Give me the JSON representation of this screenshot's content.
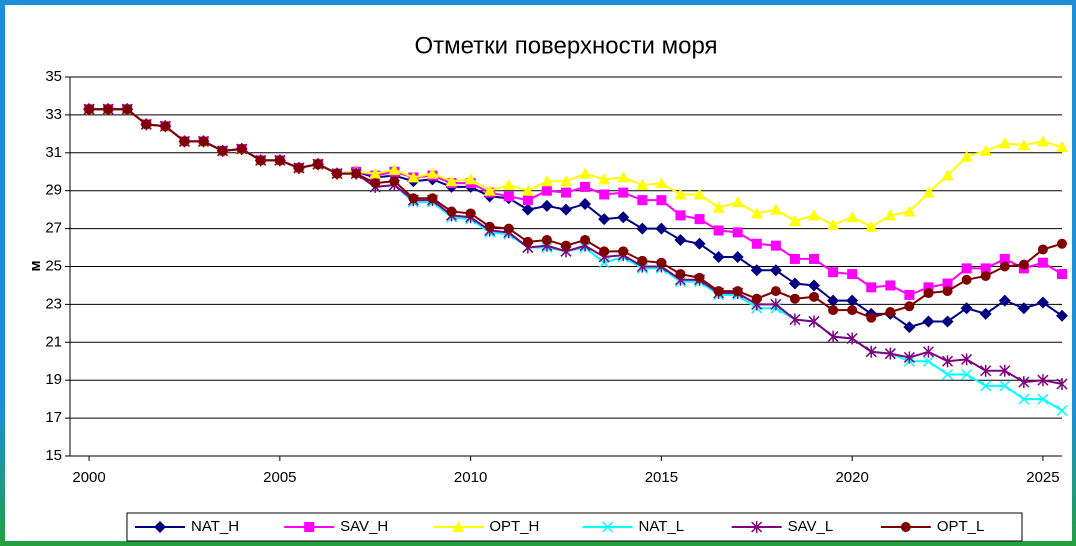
{
  "chart_data": {
    "type": "line",
    "title": "Отметки поверхности моря",
    "y_label": "м",
    "x": [
      2000,
      2000.5,
      2001,
      2001.5,
      2002,
      2002.5,
      2003,
      2003.5,
      2004,
      2004.5,
      2005,
      2005.5,
      2006,
      2006.5,
      2007,
      2007.5,
      2008,
      2008.5,
      2009,
      2009.5,
      2010,
      2010.5,
      2011,
      2011.5,
      2012,
      2012.5,
      2013,
      2013.5,
      2014,
      2014.5,
      2015,
      2015.5,
      2016,
      2016.5,
      2017,
      2017.5,
      2018,
      2018.5,
      2019,
      2019.5,
      2020,
      2020.5,
      2021,
      2021.5,
      2022,
      2022.5,
      2023,
      2023.5,
      2024,
      2024.5,
      2025,
      2025.5
    ],
    "xlim": [
      1999.5,
      2025.5
    ],
    "xticks": [
      2000,
      2005,
      2010,
      2015,
      2020,
      2025
    ],
    "ylim": [
      15,
      35
    ],
    "yticks": [
      15,
      17,
      19,
      21,
      23,
      25,
      27,
      29,
      31,
      33,
      35
    ],
    "grid": true,
    "legend": "bottom",
    "series": [
      {
        "name": "NAT_H",
        "color": "#000080",
        "marker": "diamond",
        "values": [
          33.3,
          33.3,
          33.3,
          32.5,
          32.4,
          31.6,
          31.6,
          31.1,
          31.2,
          30.6,
          30.6,
          30.2,
          30.4,
          29.9,
          30.0,
          29.7,
          29.8,
          29.5,
          29.6,
          29.2,
          29.2,
          28.7,
          28.6,
          28.0,
          28.2,
          28.0,
          28.3,
          27.5,
          27.6,
          27.0,
          27.0,
          26.4,
          26.2,
          25.5,
          25.5,
          24.8,
          24.8,
          24.1,
          24.0,
          23.2,
          23.2,
          22.5,
          22.5,
          21.8,
          22.1,
          22.1,
          22.8,
          22.5,
          23.2,
          22.8,
          23.1,
          22.4
        ]
      },
      {
        "name": "SAV_H",
        "color": "#ff00ff",
        "marker": "square",
        "values": [
          33.3,
          33.3,
          33.3,
          32.5,
          32.4,
          31.6,
          31.6,
          31.1,
          31.2,
          30.6,
          30.6,
          30.2,
          30.4,
          29.9,
          30.0,
          29.8,
          30.0,
          29.7,
          29.8,
          29.4,
          29.4,
          28.9,
          28.7,
          28.5,
          29.0,
          28.9,
          29.2,
          28.8,
          28.9,
          28.5,
          28.5,
          27.7,
          27.5,
          26.9,
          26.8,
          26.2,
          26.1,
          25.4,
          25.4,
          24.7,
          24.6,
          23.9,
          24.0,
          23.5,
          23.9,
          24.1,
          24.9,
          24.9,
          25.4,
          24.9,
          25.2,
          24.6
        ]
      },
      {
        "name": "OPT_H",
        "color": "#ffff00",
        "marker": "triangle",
        "values": [
          33.3,
          33.3,
          33.3,
          32.5,
          32.4,
          31.6,
          31.6,
          31.1,
          31.2,
          30.6,
          30.6,
          30.2,
          30.4,
          29.9,
          30.0,
          29.9,
          30.1,
          29.7,
          29.9,
          29.5,
          29.6,
          29.0,
          29.3,
          29.0,
          29.5,
          29.5,
          29.9,
          29.6,
          29.7,
          29.3,
          29.4,
          28.8,
          28.8,
          28.1,
          28.4,
          27.8,
          28.0,
          27.4,
          27.7,
          27.2,
          27.6,
          27.1,
          27.7,
          27.9,
          28.9,
          29.8,
          30.8,
          31.1,
          31.5,
          31.4,
          31.6,
          31.3
        ]
      },
      {
        "name": "NAT_L",
        "color": "#00ffff",
        "marker": "x",
        "values": [
          33.3,
          33.3,
          33.3,
          32.5,
          32.4,
          31.6,
          31.6,
          31.1,
          31.2,
          30.6,
          30.6,
          30.2,
          30.4,
          29.9,
          29.9,
          29.2,
          29.3,
          28.4,
          28.4,
          27.6,
          27.5,
          26.8,
          26.7,
          26.0,
          26.0,
          25.8,
          26.0,
          25.2,
          25.5,
          24.9,
          24.9,
          24.2,
          24.2,
          23.5,
          23.5,
          22.8,
          22.8,
          22.2,
          22.1,
          21.3,
          21.2,
          20.5,
          20.4,
          20.0,
          20.0,
          19.3,
          19.3,
          18.7,
          18.7,
          18.0,
          18.0,
          17.4
        ]
      },
      {
        "name": "SAV_L",
        "color": "#800080",
        "marker": "star",
        "values": [
          33.3,
          33.3,
          33.3,
          32.5,
          32.4,
          31.6,
          31.6,
          31.1,
          31.2,
          30.6,
          30.6,
          30.2,
          30.4,
          29.9,
          29.9,
          29.2,
          29.3,
          28.5,
          28.5,
          27.7,
          27.6,
          26.9,
          26.8,
          26.0,
          26.1,
          25.8,
          26.1,
          25.5,
          25.6,
          25.0,
          25.0,
          24.3,
          24.3,
          23.6,
          23.6,
          23.0,
          23.0,
          22.2,
          22.1,
          21.3,
          21.2,
          20.5,
          20.4,
          20.2,
          20.5,
          20.0,
          20.1,
          19.5,
          19.5,
          18.9,
          19.0,
          18.8
        ]
      },
      {
        "name": "OPT_L",
        "color": "#800000",
        "marker": "circle",
        "values": [
          33.3,
          33.3,
          33.3,
          32.5,
          32.4,
          31.6,
          31.6,
          31.1,
          31.2,
          30.6,
          30.6,
          30.2,
          30.4,
          29.9,
          29.9,
          29.4,
          29.5,
          28.6,
          28.6,
          27.9,
          27.8,
          27.1,
          27.0,
          26.3,
          26.4,
          26.1,
          26.4,
          25.8,
          25.8,
          25.3,
          25.2,
          24.6,
          24.4,
          23.7,
          23.7,
          23.3,
          23.7,
          23.3,
          23.4,
          22.7,
          22.7,
          22.3,
          22.6,
          22.9,
          23.6,
          23.7,
          24.3,
          24.5,
          25.0,
          25.1,
          25.9,
          26.2
        ]
      }
    ]
  }
}
